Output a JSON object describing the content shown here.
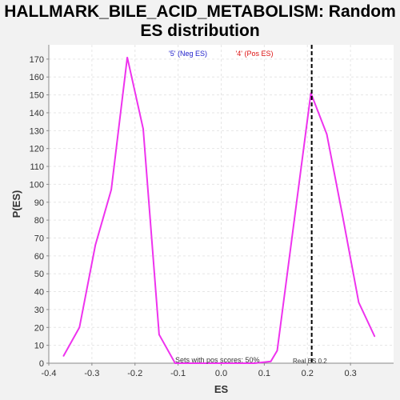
{
  "title_line1": "HALLMARK_BILE_ACID_METABOLISM: Random",
  "title_line2": "ES distribution",
  "chart_data": {
    "type": "line",
    "xlabel": "ES",
    "ylabel": "P(ES)",
    "xlim": [
      -0.4,
      0.4
    ],
    "ylim": [
      0,
      178
    ],
    "x_ticks": [
      "-0.4",
      "-0.3",
      "-0.2",
      "-0.1",
      "0.0",
      "0.1",
      "0.2",
      "0.3"
    ],
    "x_tick_values": [
      -0.4,
      -0.3,
      -0.2,
      -0.1,
      0.0,
      0.1,
      0.2,
      0.3
    ],
    "y_ticks": [
      "0",
      "10",
      "20",
      "30",
      "40",
      "50",
      "60",
      "70",
      "80",
      "90",
      "100",
      "110",
      "120",
      "130",
      "140",
      "150",
      "160",
      "170"
    ],
    "y_tick_values": [
      0,
      10,
      20,
      30,
      40,
      50,
      60,
      70,
      80,
      90,
      100,
      110,
      120,
      130,
      140,
      150,
      160,
      170
    ],
    "grid": true,
    "series": [
      {
        "color": "#ee33ee",
        "points": [
          [
            -0.366,
            4
          ],
          [
            -0.329,
            20
          ],
          [
            -0.292,
            66
          ],
          [
            -0.255,
            97
          ],
          [
            -0.218,
            171
          ],
          [
            -0.181,
            131
          ],
          [
            -0.144,
            16
          ],
          [
            -0.107,
            0
          ],
          [
            -0.07,
            0
          ],
          [
            -0.033,
            0
          ],
          [
            0.004,
            0
          ],
          [
            0.041,
            0
          ],
          [
            0.078,
            0
          ],
          [
            0.115,
            1
          ],
          [
            0.13,
            7
          ],
          [
            0.208,
            151
          ],
          [
            0.245,
            128
          ],
          [
            0.282,
            82
          ],
          [
            0.319,
            34
          ],
          [
            0.356,
            15
          ]
        ]
      }
    ],
    "real_es": 0.21,
    "neg_label": "'5' (Neg ES)",
    "pos_label": "'4' (Pos ES)",
    "neg_label_color": "#2222cc",
    "pos_label_color": "#dd1111",
    "pos_scores_text": "Sets with pos scores: 50%",
    "real_es_text": "Real ES 0.2"
  }
}
